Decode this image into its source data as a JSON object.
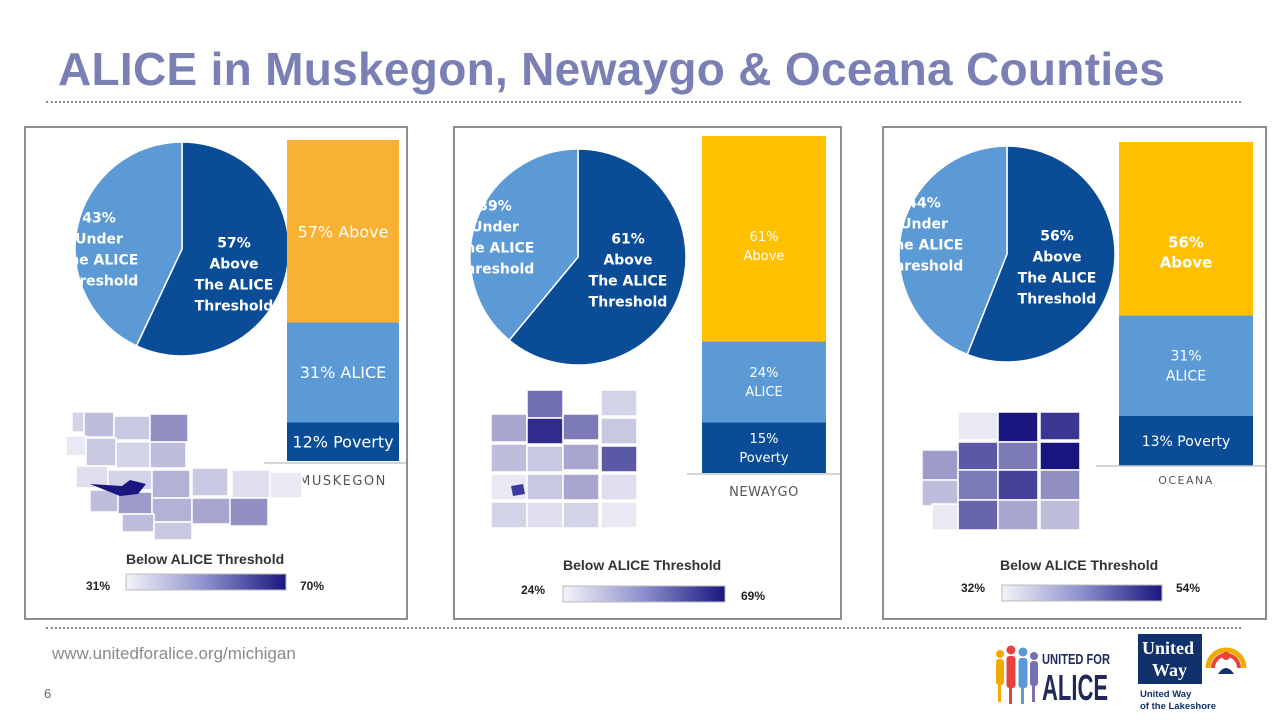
{
  "title": "ALICE in Muskegon, Newaygo & Oceana Counties",
  "website": "www.unitedforalice.org/michigan",
  "page_number": "6",
  "logos": {
    "alice_top": "UNITED FOR",
    "alice_bottom": "ALICE",
    "uw_line1": "United",
    "uw_line2": "Way",
    "uw_sub1": "United Way",
    "uw_sub2": "of the Lakeshore"
  },
  "colors": {
    "title": "#7a7fb4",
    "pie_under": "#5b9ad5",
    "pie_above": "#0a4c96",
    "bar_above_orange": "#f8b133",
    "bar_above_yellow": "#ffc000",
    "bar_alice": "#5b9ad5",
    "bar_poverty": "#0a4c96",
    "scale_low": "#f4f4fa",
    "scale_high": "#1a1680"
  },
  "chart_data": [
    {
      "type": "pie",
      "county": "MUSKEGON",
      "slices": [
        {
          "category": "Under The ALICE Threshold",
          "value": 43,
          "label_lines": [
            "43%",
            "Under",
            "The ALICE",
            "Threshold"
          ]
        },
        {
          "category": "Above The ALICE Threshold",
          "value": 57,
          "label_lines": [
            "57%",
            "Above",
            "The ALICE",
            "Threshold"
          ]
        }
      ],
      "stacked_bar": [
        {
          "category": "Poverty",
          "value": 12,
          "label_lines": [
            "12% Poverty"
          ]
        },
        {
          "category": "ALICE",
          "value": 31,
          "label_lines": [
            "31% ALICE"
          ]
        },
        {
          "category": "Above",
          "value": 57,
          "label_lines": [
            "57% Above"
          ]
        }
      ],
      "legend": {
        "title": "Below ALICE Threshold",
        "min_label": "31%",
        "max_label": "70%"
      }
    },
    {
      "type": "pie",
      "county": "NEWAYGO",
      "slices": [
        {
          "category": "Under The ALICE Threshold",
          "value": 39,
          "label_lines": [
            "39%",
            "Under",
            "The ALICE",
            "Threshold"
          ]
        },
        {
          "category": "Above The ALICE Threshold",
          "value": 61,
          "label_lines": [
            "61%",
            "Above",
            "The ALICE",
            "Threshold"
          ]
        }
      ],
      "stacked_bar": [
        {
          "category": "Poverty",
          "value": 15,
          "label_lines": [
            "15%",
            "Poverty"
          ]
        },
        {
          "category": "ALICE",
          "value": 24,
          "label_lines": [
            "24%",
            "ALICE"
          ]
        },
        {
          "category": "Above",
          "value": 61,
          "label_lines": [
            "61%",
            "Above"
          ]
        }
      ],
      "legend": {
        "title": "Below ALICE Threshold",
        "min_label": "24%",
        "max_label": "69%"
      }
    },
    {
      "type": "pie",
      "county": "OCEANA",
      "slices": [
        {
          "category": "Under The ALICE Threshold",
          "value": 44,
          "label_lines": [
            "44%",
            "Under",
            "The ALICE",
            "Threshold"
          ]
        },
        {
          "category": "Above The ALICE Threshold",
          "value": 56,
          "label_lines": [
            "56%",
            "Above",
            "The ALICE",
            "Threshold"
          ]
        }
      ],
      "stacked_bar": [
        {
          "category": "Poverty",
          "value": 13,
          "label_lines": [
            "13% Poverty"
          ]
        },
        {
          "category": "ALICE",
          "value": 31,
          "label_lines": [
            "31%",
            "ALICE"
          ]
        },
        {
          "category": "Above",
          "value": 56,
          "label_lines": [
            "56%",
            "Above"
          ]
        }
      ],
      "legend": {
        "title": "Below ALICE Threshold",
        "min_label": "32%",
        "max_label": "54%"
      }
    }
  ]
}
